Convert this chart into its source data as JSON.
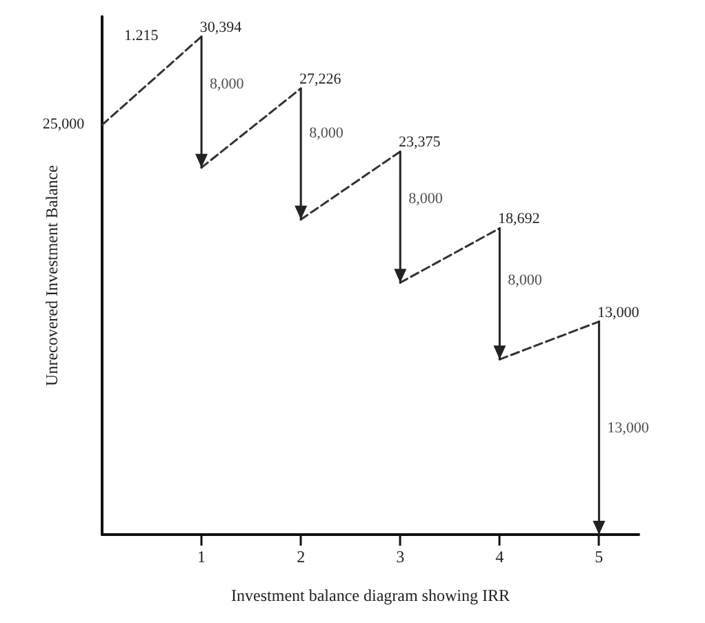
{
  "chart_data": {
    "type": "line",
    "xlabel": "Investment balance diagram showing IRR",
    "ylabel": "Unrecovered Investment Balance",
    "xlim": [
      0,
      5.4
    ],
    "xticks": [
      1,
      2,
      3,
      4,
      5
    ],
    "tick_labels": "x",
    "grid": false,
    "series": [
      {
        "color": "#333333",
        "line_style": "dashed",
        "x": [
          0,
          1,
          null,
          1,
          2,
          null,
          2,
          3,
          null,
          3,
          4,
          null,
          4,
          5
        ],
        "values": [
          25000,
          30394,
          null,
          22394,
          27226,
          null,
          19226,
          23375,
          null,
          15375,
          18692,
          null,
          10692,
          13000
        ],
        "value_labels": [
          "25,000",
          "30,394",
          null,
          null,
          "27,226",
          null,
          null,
          "23,375",
          null,
          null,
          "18,692",
          null,
          null,
          "13,000"
        ]
      },
      {
        "color": "#222222",
        "line_style": "solid",
        "x": [
          1,
          1,
          null,
          2,
          2,
          null,
          3,
          3,
          null,
          4,
          4,
          null,
          5,
          5
        ],
        "values": [
          30394,
          22394,
          null,
          27226,
          19226,
          null,
          23375,
          15375,
          null,
          18692,
          10692,
          null,
          13000,
          0
        ]
      }
    ],
    "annotations": [
      "1.215",
      {
        "text": "8,000",
        "x": 1,
        "y": 27500
      },
      {
        "text": "8,000",
        "x": 2,
        "y": 24500
      },
      {
        "text": "8,000",
        "x": 3,
        "y": 20500
      },
      {
        "text": "8,000",
        "x": 4,
        "y": 15500
      },
      {
        "text": "13,000",
        "x": 5,
        "y": 6500
      }
    ]
  }
}
